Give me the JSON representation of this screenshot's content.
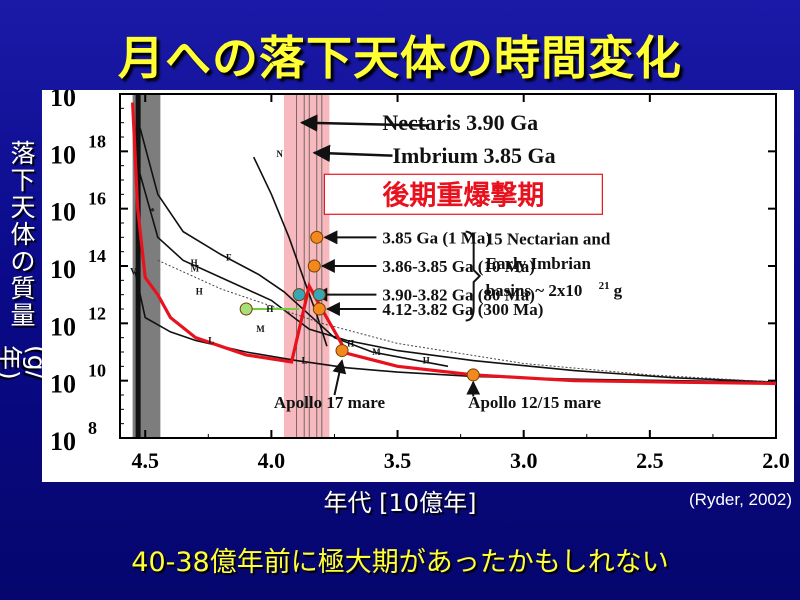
{
  "slide": {
    "title": "月への落下天体の時間変化",
    "y_label_chars": [
      "落",
      "下",
      "天",
      "体",
      "の",
      "質",
      "量"
    ],
    "y_label_unit": "(g/年)",
    "x_label": "年代 [10億年]",
    "citation": "(Ryder, 2002)",
    "conclusion": "40-38億年前に極大期があったかもしれない"
  },
  "colors": {
    "title": "#ffff33",
    "background": "#0a0a8a",
    "plot_bg": "#ffffff",
    "red_curve": "#e8121e",
    "lhb_band": "#f4a0a8",
    "dark_band": "#666666",
    "orange_points": "#f08a1e",
    "teal_points": "#39a6b8",
    "green_point": "#a6e07a"
  },
  "chart_data": {
    "type": "line",
    "title": "",
    "xlabel": "年代 [10億年]",
    "ylabel": "落下天体の質量 (g/年)",
    "xlim": [
      4.6,
      2.0
    ],
    "ylim": [
      8,
      20
    ],
    "x_ticks": [
      "4.5",
      "4.0",
      "3.5",
      "3.0",
      "2.5",
      "2.0"
    ],
    "x_tick_values": [
      4.5,
      4.0,
      3.5,
      3.0,
      2.5,
      2.0
    ],
    "y_ticks": [
      "8",
      "10",
      "12",
      "14",
      "16",
      "18",
      "20"
    ],
    "y_tick_values": [
      8,
      10,
      12,
      14,
      16,
      18,
      20
    ],
    "y_tick_base": "10",
    "band_label": "後期重爆撃期",
    "shaded_range": [
      3.95,
      3.77
    ],
    "dark_band_range": [
      4.55,
      4.44
    ],
    "series": [
      {
        "color": "#e8121e",
        "x": [
          4.55,
          4.53,
          4.5,
          4.45,
          4.4,
          4.3,
          4.1,
          3.92,
          3.85,
          3.8,
          3.7,
          3.5,
          3.2,
          2.8,
          2.4,
          2.0
        ],
        "y": [
          19.7,
          16.0,
          13.6,
          13.0,
          12.2,
          11.5,
          10.9,
          10.65,
          13.3,
          12.5,
          10.95,
          10.5,
          10.2,
          10.0,
          9.95,
          9.9
        ]
      },
      {
        "x": [
          4.54,
          4.5,
          4.4,
          4.3,
          4.1,
          3.9,
          3.7,
          3.5,
          3.2,
          2.8,
          2.4,
          2.0
        ],
        "y": [
          13.8,
          12.2,
          11.7,
          11.4,
          11.0,
          10.7,
          10.45,
          10.3,
          10.15,
          10.05,
          10.0,
          9.95
        ]
      },
      {
        "x": [
          4.53,
          4.45,
          4.35,
          4.2,
          4.0,
          3.85,
          3.7,
          3.5,
          3.2,
          2.8,
          2.4,
          2.0
        ],
        "y": [
          17.5,
          15.0,
          14.2,
          13.6,
          12.8,
          11.8,
          11.4,
          11.05,
          10.7,
          10.35,
          10.1,
          9.95
        ]
      },
      {
        "x": [
          4.52,
          4.45,
          4.35,
          4.2,
          4.05,
          3.95,
          3.85,
          3.75,
          3.6,
          3.3
        ],
        "y": [
          18.8,
          16.5,
          15.2,
          14.4,
          13.7,
          13.1,
          12.3,
          11.5,
          11.0,
          10.5
        ]
      },
      {
        "x": [
          4.07,
          4.0,
          3.93,
          3.87,
          3.82,
          3.78
        ],
        "y": [
          17.8,
          16.5,
          15.0,
          13.5,
          12.3,
          11.2
        ]
      }
    ],
    "labels": {
      "nectaris": "Nectaris 3.90 Ga",
      "imbrium": "Imbrium 3.85 Ga",
      "legend_rows": [
        {
          "text": "3.85 Ga (1 Ma)",
          "x": 3.82,
          "y": 15.0
        },
        {
          "text": "3.86-3.85 Ga (10 Ma)",
          "x": 3.83,
          "y": 14.0
        },
        {
          "text": "3.90-3.82 Ga (80 Ma)",
          "x": 3.86,
          "y": 13.0
        },
        {
          "text": "4.12-3.82 Ga (300 Ma)",
          "x": 3.81,
          "y": 12.5
        }
      ],
      "bracket_text": [
        "15 Nectarian and",
        "Early Imbrian",
        "basins ~ 2x10",
        "21",
        " g"
      ],
      "apollo17": "Apollo 17 mare",
      "apollo12": "Apollo 12/15 mare",
      "curve_markers": [
        "N",
        "H",
        "M",
        "L",
        "F",
        "V",
        "*"
      ]
    },
    "points": [
      {
        "x": 3.82,
        "y": 15.0,
        "color": "orange"
      },
      {
        "x": 3.83,
        "y": 14.0,
        "color": "orange"
      },
      {
        "x": 3.89,
        "y": 13.0,
        "color": "teal"
      },
      {
        "x": 3.81,
        "y": 13.0,
        "color": "teal"
      },
      {
        "x": 3.81,
        "y": 12.5,
        "color": "orange"
      },
      {
        "x": 4.1,
        "y": 12.5,
        "color": "green"
      },
      {
        "x": 3.72,
        "y": 11.05,
        "color": "orange"
      },
      {
        "x": 3.2,
        "y": 10.2,
        "color": "orange"
      }
    ]
  }
}
